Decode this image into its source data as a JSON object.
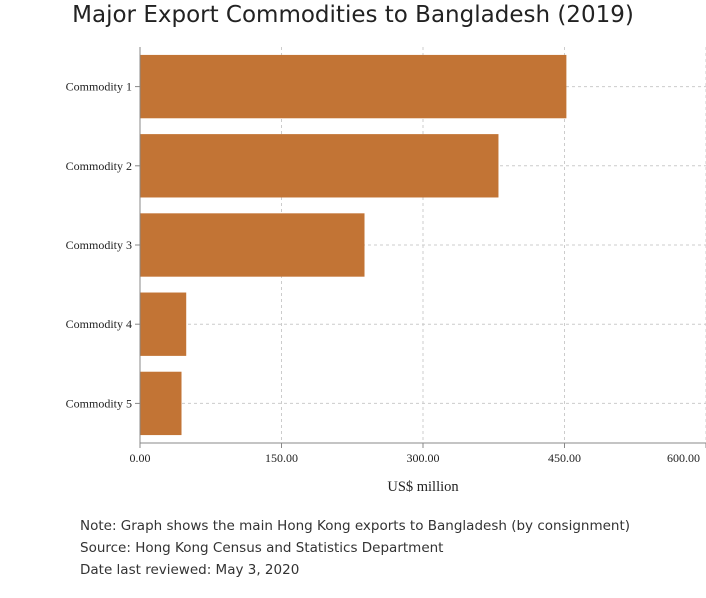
{
  "chart_data": {
    "type": "bar",
    "orientation": "horizontal",
    "title": "Major Export Commodities to Bangladesh (2019)",
    "xlabel": "US$ million",
    "ylabel": "",
    "categories": [
      "Commodity 1",
      "Commodity 2",
      "Commodity 3",
      "Commodity 4",
      "Commodity 5"
    ],
    "values": [
      452,
      380,
      238,
      49,
      44
    ],
    "xlim": [
      0,
      600
    ],
    "x_ticks": [
      "0.00",
      "150.00",
      "300.00",
      "450.00",
      "600.00"
    ],
    "grid": true,
    "legend": "none",
    "bar_color": "#c27435"
  },
  "notes": {
    "note": "Note: Graph shows the main Hong Kong exports to Bangladesh (by consignment)",
    "source": "Source: Hong Kong Census and Statistics Department",
    "reviewed": "Date last reviewed: May 3, 2020"
  }
}
